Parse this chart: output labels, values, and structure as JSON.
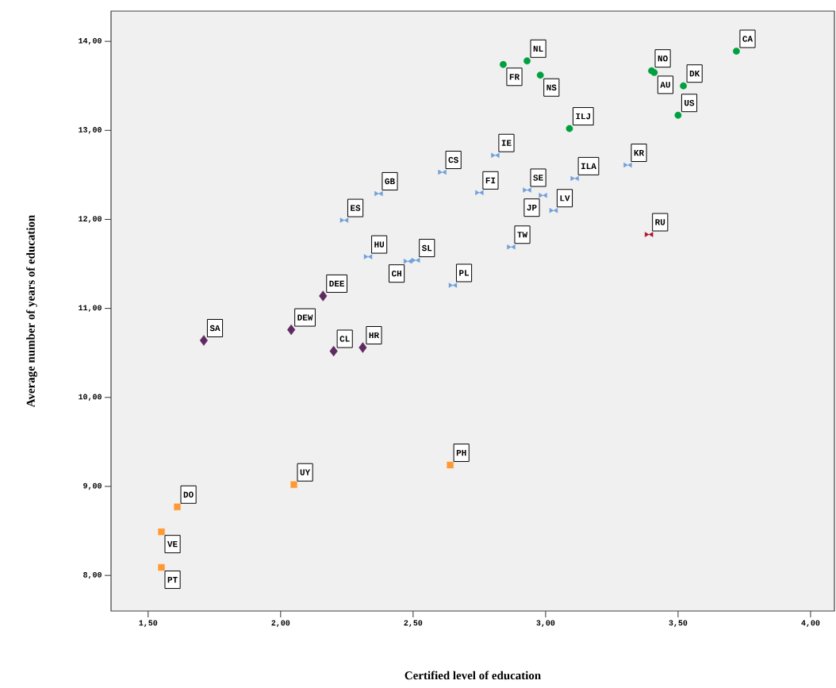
{
  "chart_data": {
    "type": "scatter",
    "xlabel": "Certified level of education",
    "ylabel": "Average number of years of education",
    "xlim": [
      1.36,
      4.09
    ],
    "ylim": [
      7.6,
      14.34
    ],
    "xticks": [
      {
        "value": 1.5,
        "label": "1,50"
      },
      {
        "value": 2.0,
        "label": "2,00"
      },
      {
        "value": 2.5,
        "label": "2,50"
      },
      {
        "value": 3.0,
        "label": "3,00"
      },
      {
        "value": 3.5,
        "label": "3,50"
      },
      {
        "value": 4.0,
        "label": "4,00"
      }
    ],
    "yticks": [
      {
        "value": 8,
        "label": "8,00"
      },
      {
        "value": 9,
        "label": "9,00"
      },
      {
        "value": 10,
        "label": "10,00"
      },
      {
        "value": 11,
        "label": "11,00"
      },
      {
        "value": 12,
        "label": "12,00"
      },
      {
        "value": 13,
        "label": "13,00"
      },
      {
        "value": 14,
        "label": "14,00"
      }
    ],
    "series": [
      {
        "color": "#00a040",
        "marker": "circle",
        "x": [
          2.84,
          2.93,
          2.98,
          3.09,
          3.4,
          3.41,
          3.52,
          3.5,
          3.72
        ],
        "values": [
          13.74,
          13.78,
          13.62,
          13.02,
          13.67,
          13.65,
          13.5,
          13.17,
          13.89
        ]
      },
      {
        "color": "#6fa0d8",
        "x": [
          2.61,
          2.37,
          2.24,
          2.33,
          2.48,
          2.51,
          2.65,
          2.81,
          2.75,
          2.93,
          2.99,
          3.03,
          3.11,
          3.31,
          2.87
        ],
        "values": [
          12.53,
          12.29,
          11.99,
          11.58,
          11.53,
          11.54,
          11.26,
          12.72,
          12.3,
          12.33,
          12.27,
          12.1,
          12.46,
          12.61,
          11.69
        ]
      },
      {
        "color": "#b0102a",
        "x": [
          3.39
        ],
        "values": [
          11.83
        ]
      },
      {
        "color": "#5e2a62",
        "marker": "diamond",
        "x": [
          2.16,
          2.04,
          1.71,
          2.2,
          2.31
        ],
        "values": [
          11.14,
          10.76,
          10.64,
          10.52,
          10.56
        ]
      },
      {
        "color": "#ff9933",
        "marker": "square",
        "x": [
          2.64,
          2.05,
          1.61,
          1.55,
          1.55
        ],
        "values": [
          9.24,
          9.02,
          8.77,
          8.49,
          8.09
        ]
      }
    ],
    "annotations": [
      {
        "text": "FR",
        "x": 2.84,
        "y": 13.74
      },
      {
        "text": "NL",
        "x": 2.93,
        "y": 13.78
      },
      {
        "text": "NS",
        "x": 2.98,
        "y": 13.62
      },
      {
        "text": "ILJ",
        "x": 3.09,
        "y": 13.02
      },
      {
        "text": "NO",
        "x": 3.4,
        "y": 13.67
      },
      {
        "text": "AU",
        "x": 3.41,
        "y": 13.65
      },
      {
        "text": "DK",
        "x": 3.52,
        "y": 13.5
      },
      {
        "text": "US",
        "x": 3.5,
        "y": 13.17
      },
      {
        "text": "CA",
        "x": 3.72,
        "y": 13.89
      },
      {
        "text": "CS",
        "x": 2.61,
        "y": 12.53
      },
      {
        "text": "GB",
        "x": 2.37,
        "y": 12.29
      },
      {
        "text": "ES",
        "x": 2.24,
        "y": 11.99
      },
      {
        "text": "HU",
        "x": 2.33,
        "y": 11.58
      },
      {
        "text": "CH",
        "x": 2.48,
        "y": 11.53
      },
      {
        "text": "SL",
        "x": 2.51,
        "y": 11.54
      },
      {
        "text": "PL",
        "x": 2.65,
        "y": 11.26
      },
      {
        "text": "IE",
        "x": 2.81,
        "y": 12.72
      },
      {
        "text": "FI",
        "x": 2.75,
        "y": 12.3
      },
      {
        "text": "SE",
        "x": 2.93,
        "y": 12.33
      },
      {
        "text": "JP",
        "x": 2.99,
        "y": 12.27
      },
      {
        "text": "LV",
        "x": 3.03,
        "y": 12.1
      },
      {
        "text": "ILA",
        "x": 3.11,
        "y": 12.46
      },
      {
        "text": "KR",
        "x": 3.31,
        "y": 12.61
      },
      {
        "text": "TW",
        "x": 2.87,
        "y": 11.69
      },
      {
        "text": "RU",
        "x": 3.39,
        "y": 11.83
      },
      {
        "text": "DEE",
        "x": 2.16,
        "y": 11.14
      },
      {
        "text": "DEW",
        "x": 2.04,
        "y": 10.76
      },
      {
        "text": "SA",
        "x": 1.71,
        "y": 10.64
      },
      {
        "text": "CL",
        "x": 2.2,
        "y": 10.52
      },
      {
        "text": "HR",
        "x": 2.31,
        "y": 10.56
      },
      {
        "text": "PH",
        "x": 2.64,
        "y": 9.24
      },
      {
        "text": "UY",
        "x": 2.05,
        "y": 9.02
      },
      {
        "text": "DO",
        "x": 1.61,
        "y": 8.77
      },
      {
        "text": "VE",
        "x": 1.55,
        "y": 8.49
      },
      {
        "text": "PT",
        "x": 1.55,
        "y": 8.09
      }
    ]
  }
}
